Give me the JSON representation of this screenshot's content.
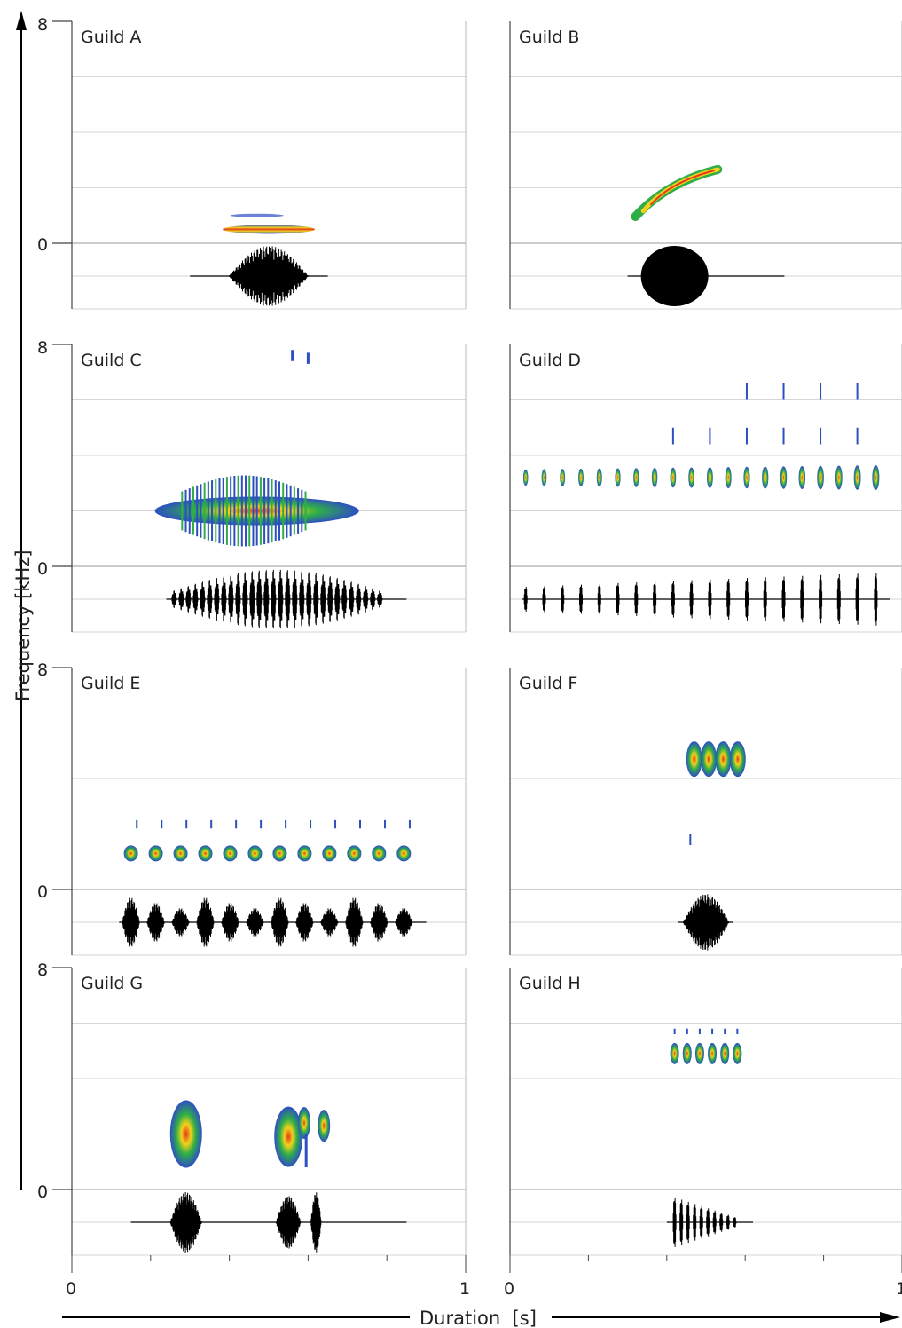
{
  "figure": {
    "y_axis_label": "Frequency [kHz]",
    "x_axis_label": "Duration  [s]",
    "freq_max_label": "8",
    "freq_zero_label": "0",
    "time_start_label": "0",
    "time_end_label": "1",
    "time_start_label_right": "0",
    "colors": {
      "waveform": "#000000",
      "grid": "#d6d6d6",
      "baseline": "#9a9a9a",
      "spec_low": "#2d4fc2",
      "spec_mid": "#2fae47",
      "spec_high": "#f2d21a",
      "spec_peak": "#e23a1e"
    }
  },
  "panels": [
    {
      "id": "A",
      "label": "Guild A"
    },
    {
      "id": "B",
      "label": "Guild B"
    },
    {
      "id": "C",
      "label": "Guild C"
    },
    {
      "id": "D",
      "label": "Guild D"
    },
    {
      "id": "E",
      "label": "Guild E"
    },
    {
      "id": "F",
      "label": "Guild F"
    },
    {
      "id": "G",
      "label": "Guild G"
    },
    {
      "id": "H",
      "label": "Guild H"
    }
  ]
}
